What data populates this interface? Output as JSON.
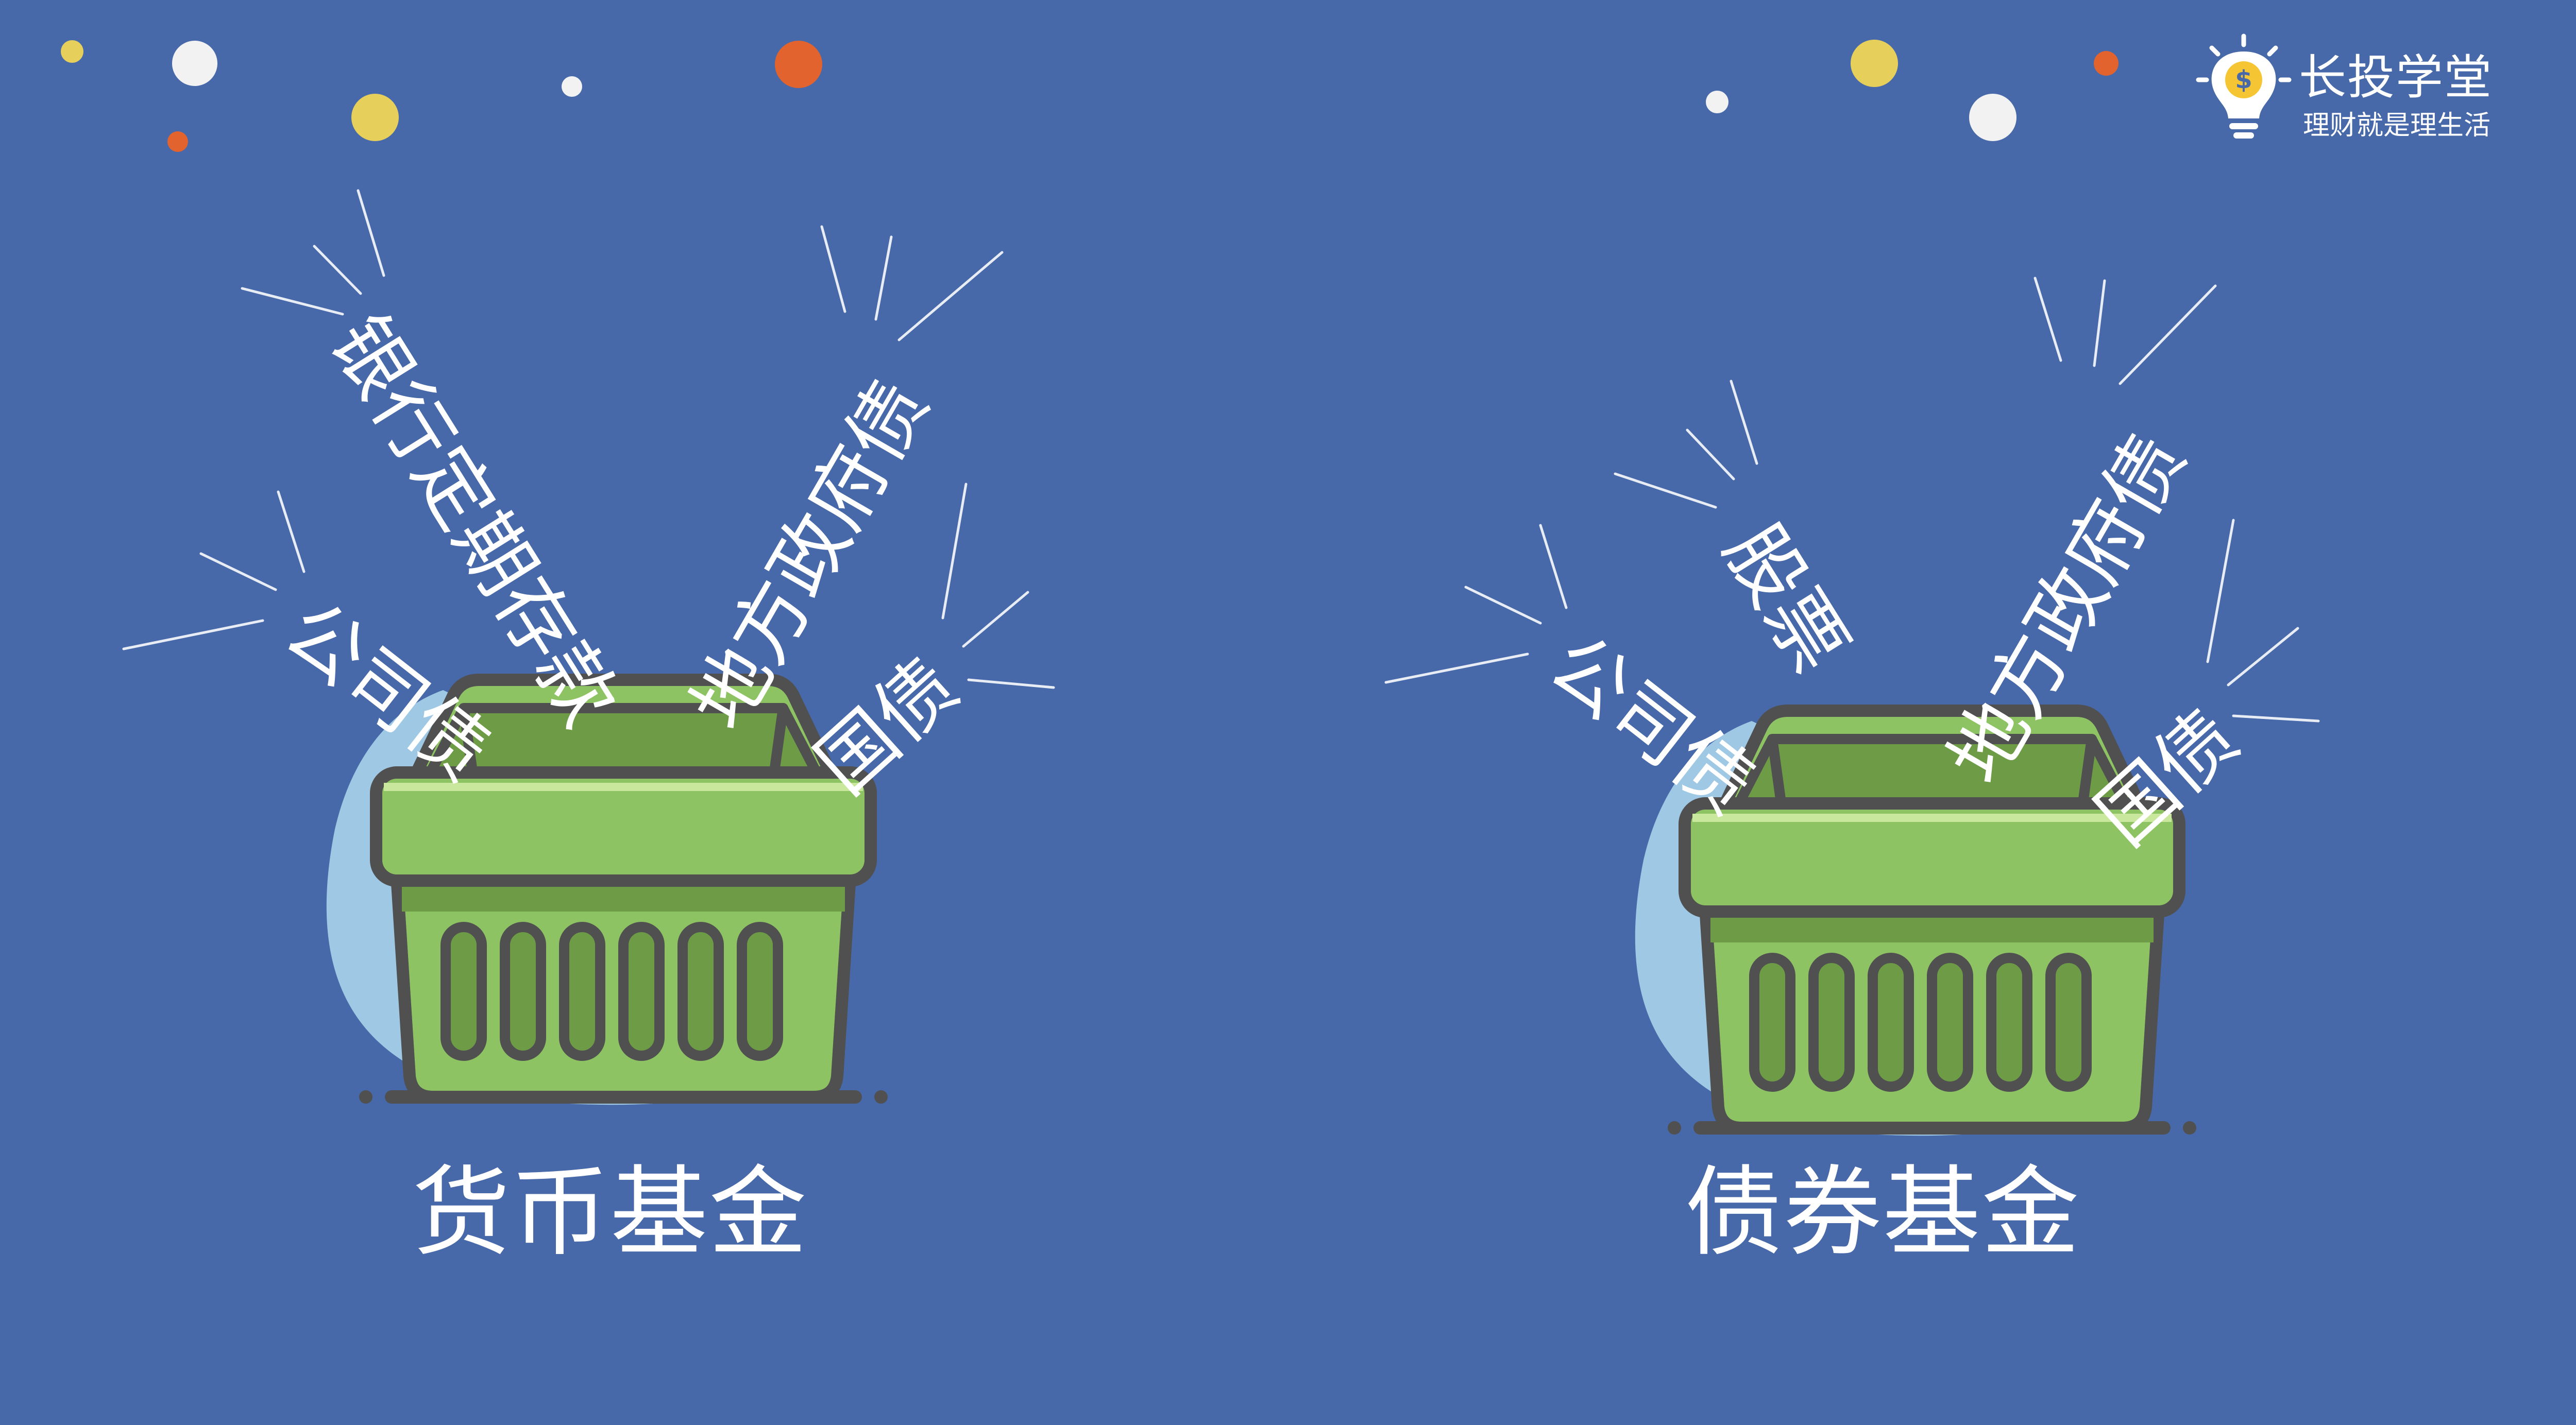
{
  "brand": {
    "name": "长投学堂",
    "slogan": "理财就是理生活",
    "logo_icon": "lightbulb-dollar-icon",
    "accent": "#f5c534"
  },
  "colors": {
    "background": "#4769a9",
    "basket_green": "#8ec363",
    "basket_dark_green": "#6e9c46",
    "outline": "#505050",
    "shadow_blue": "#9fc8e5",
    "dot_yellow": "#e7cf5c",
    "dot_orange": "#e2632d",
    "dot_white": "#f2f2f2"
  },
  "money_fund": {
    "title": "货币基金",
    "items": [
      "公司债",
      "银行定期存款",
      "地方政府债",
      "国债"
    ]
  },
  "bond_fund": {
    "title": "债券基金",
    "items": [
      "公司债",
      "股票",
      "地方政府债",
      "国债"
    ]
  }
}
